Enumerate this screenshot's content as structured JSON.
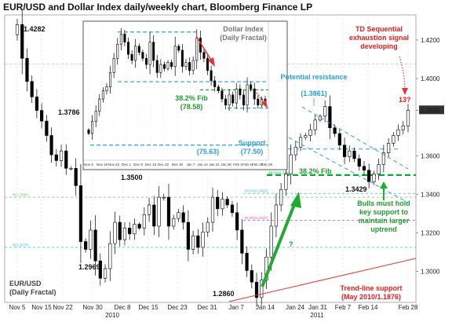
{
  "title": "EUR/USD and Dollar Index daily/weekly chart, Bloomberg Finance LP",
  "colors": {
    "candle_up": "#ffffff",
    "candle_down": "#000000",
    "blue_dash": "#2a9fd6",
    "green_dash": "#00aa33",
    "green_arrow": "#22aa33",
    "red_line": "#e33333",
    "red_text": "#e31d1d",
    "green_text": "#1e9a2f",
    "blue_text": "#2a9fd6",
    "level_green": "#66cc66",
    "level_magenta": "#e63fbf",
    "level_cyan": "#33bbdd"
  },
  "chart_data": [
    {
      "type": "candlestick",
      "name": "EUR/USD (Daily Fractal)",
      "x_ticks": [
        "Nov 5",
        "Nov 15",
        "Nov 22",
        "Nov 30",
        "Dec 8",
        "Dec 15",
        "Dec 23",
        "Dec 31",
        "Jan 7",
        "Jan 14",
        "Jan 24",
        "Jan 31",
        "Feb 7",
        "Feb 14",
        "Feb 28"
      ],
      "year_labels": [
        "2010",
        "2011"
      ],
      "y_ticks": [
        "1.4200",
        "1.4000",
        "1.3836",
        "1.3600",
        "1.3400",
        "1.3200",
        "1.3000"
      ],
      "ylim": [
        1.284,
        1.433
      ],
      "current_price": "1.3836",
      "closes": [
        1.428,
        1.4105,
        1.3985,
        1.3905,
        1.3835,
        1.378,
        1.3705,
        1.3605,
        1.3575,
        1.3625,
        1.3535,
        1.3535,
        1.3445,
        1.3155,
        1.3115,
        1.3215,
        1.3055,
        1.2965,
        1.3015,
        1.3145,
        1.3255,
        1.3165,
        1.3225,
        1.3195,
        1.3245,
        1.3225,
        1.3295,
        1.3345,
        1.3235,
        1.3385,
        1.3385,
        1.3235,
        1.3275,
        1.3305,
        1.3255,
        1.3115,
        1.3185,
        1.3125,
        1.3205,
        1.3255,
        1.3385,
        1.3325,
        1.3375,
        1.3345,
        1.3305,
        1.3215,
        1.3095,
        1.3005,
        1.2945,
        1.2865,
        1.2955,
        1.3075,
        1.3235,
        1.3345,
        1.3425,
        1.3505,
        1.3605,
        1.3645,
        1.3695,
        1.3705,
        1.3735,
        1.3785,
        1.3805,
        1.3855,
        1.3745,
        1.3715,
        1.3655,
        1.3595,
        1.3625,
        1.3585,
        1.3545,
        1.3525,
        1.3465,
        1.3505,
        1.3555,
        1.3615,
        1.3665,
        1.3705,
        1.3735,
        1.3755,
        1.3836
      ],
      "swing_labels": [
        "1.4282",
        "1.3786",
        "1.3500",
        "1.2969",
        "1.2860",
        "1.3429"
      ],
      "levels": [
        {
          "name": "support",
          "value": 1.35,
          "label": "38.2%(1.3494)"
        },
        {
          "name": "fib-upper",
          "value": 1.3635
        },
        {
          "name": "green-lvl",
          "value": 1.3385,
          "label": "R(1.3385)"
        },
        {
          "name": "magenta-lvl",
          "value": 1.3265,
          "label": "61.8%(1.3247)"
        },
        {
          "name": "cyan-lvl",
          "value": 1.3405,
          "label": "50.0%(1.3422)"
        },
        {
          "name": "cyan-lvl-2",
          "value": 1.3125,
          "label": "R(1.3070)"
        }
      ],
      "trend_line_label": "Trend-line support (May 2010/1.1876)"
    },
    {
      "type": "candlestick",
      "name": "Dollar Index (Daily Fractal)",
      "x_ticks": [
        "Nov 5",
        "Nov 15",
        "Nov 22",
        "Dec 1",
        "Dec 8",
        "Dec 15",
        "Dec 22",
        "Dec 30",
        "Jan 7",
        "Jan 14",
        "Jan 21",
        "Jan 28",
        "Feb 4",
        "Feb 11",
        "Feb 18",
        "Feb 28"
      ],
      "ylim": [
        75.0,
        81.5
      ],
      "closes": [
        76.2,
        76.8,
        77.3,
        77.9,
        78.3,
        78.5,
        79.2,
        79.9,
        80.6,
        81.1,
        80.7,
        80.1,
        79.8,
        80.5,
        80.2,
        79.9,
        79.6,
        80.7,
        79.8,
        79.2,
        79.6,
        79.4,
        79.7,
        79.5,
        80.5,
        80.3,
        79.5,
        79.7,
        79.3,
        79.8,
        80.9,
        80.2,
        79.9,
        79.3,
        78.8,
        78.5,
        78.3,
        77.9,
        77.6,
        78.1,
        77.7,
        78.4,
        78.1,
        77.6,
        78.6,
        78.4,
        77.9,
        77.6,
        77.9,
        77.7
      ]
    }
  ],
  "annotations": {
    "td_signal": "TD Sequential exhaustion signal developing",
    "td_count": "13?",
    "potential_resistance": "Potential resistance",
    "potential_resistance_value": "(1.3861)",
    "fib_382": "38.2% Fib",
    "bulls": "Bulls must hold key support to maintain larger uptrend",
    "question": "?",
    "eurusd_name_1": "EUR/USD",
    "eurusd_name_2": "(Daily Fractal)",
    "dx_name_1": "Dollar Index",
    "dx_name_2": "(Daily Fractal)",
    "dx_fib": "38.2% Fib",
    "dx_fib_value": "(78.58)",
    "dx_support": "Support",
    "dx_support_value": "(77.50)",
    "dx_low": "(75.63)",
    "trend_line_support": "Trend-line support",
    "trend_line_support_value": "(May 2010/1.1876)"
  }
}
